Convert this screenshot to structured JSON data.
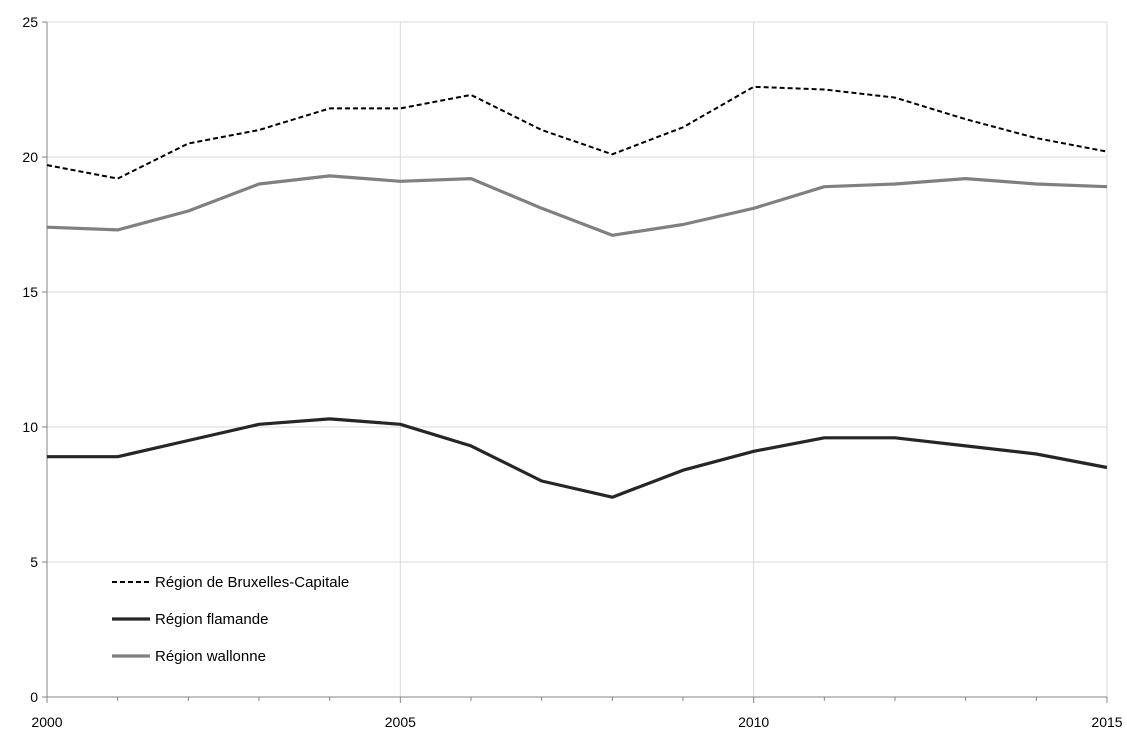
{
  "chart_data": {
    "type": "line",
    "x": [
      2000,
      2001,
      2002,
      2003,
      2004,
      2005,
      2006,
      2007,
      2008,
      2009,
      2010,
      2011,
      2012,
      2013,
      2014,
      2015
    ],
    "xlim": [
      2000,
      2015
    ],
    "ylim": [
      0,
      25
    ],
    "x_ticks": [
      "2000",
      "2005",
      "2010",
      "2015"
    ],
    "y_ticks": [
      "0",
      "5",
      "10",
      "15",
      "20",
      "25"
    ],
    "grid": "vertical and horizontal",
    "legend_position": "bottom-left",
    "series": [
      {
        "name": "Région de Bruxelles-Capitale",
        "color": "#000000",
        "style": "dashed",
        "values": [
          19.7,
          19.2,
          20.5,
          21.0,
          21.8,
          21.8,
          22.3,
          21.0,
          20.1,
          21.1,
          22.6,
          22.5,
          22.2,
          21.4,
          20.7,
          20.2
        ]
      },
      {
        "name": "Région flamande",
        "color": "#262626",
        "style": "solid",
        "values": [
          8.9,
          8.9,
          9.5,
          10.1,
          10.3,
          10.1,
          9.3,
          8.0,
          7.4,
          8.4,
          9.1,
          9.6,
          9.6,
          9.3,
          9.0,
          8.5
        ]
      },
      {
        "name": "Région wallonne",
        "color": "#808080",
        "style": "solid",
        "values": [
          17.4,
          17.3,
          18.0,
          19.0,
          19.3,
          19.1,
          19.2,
          18.1,
          17.1,
          17.5,
          18.1,
          18.9,
          19.0,
          19.2,
          19.0,
          18.9
        ]
      }
    ]
  }
}
